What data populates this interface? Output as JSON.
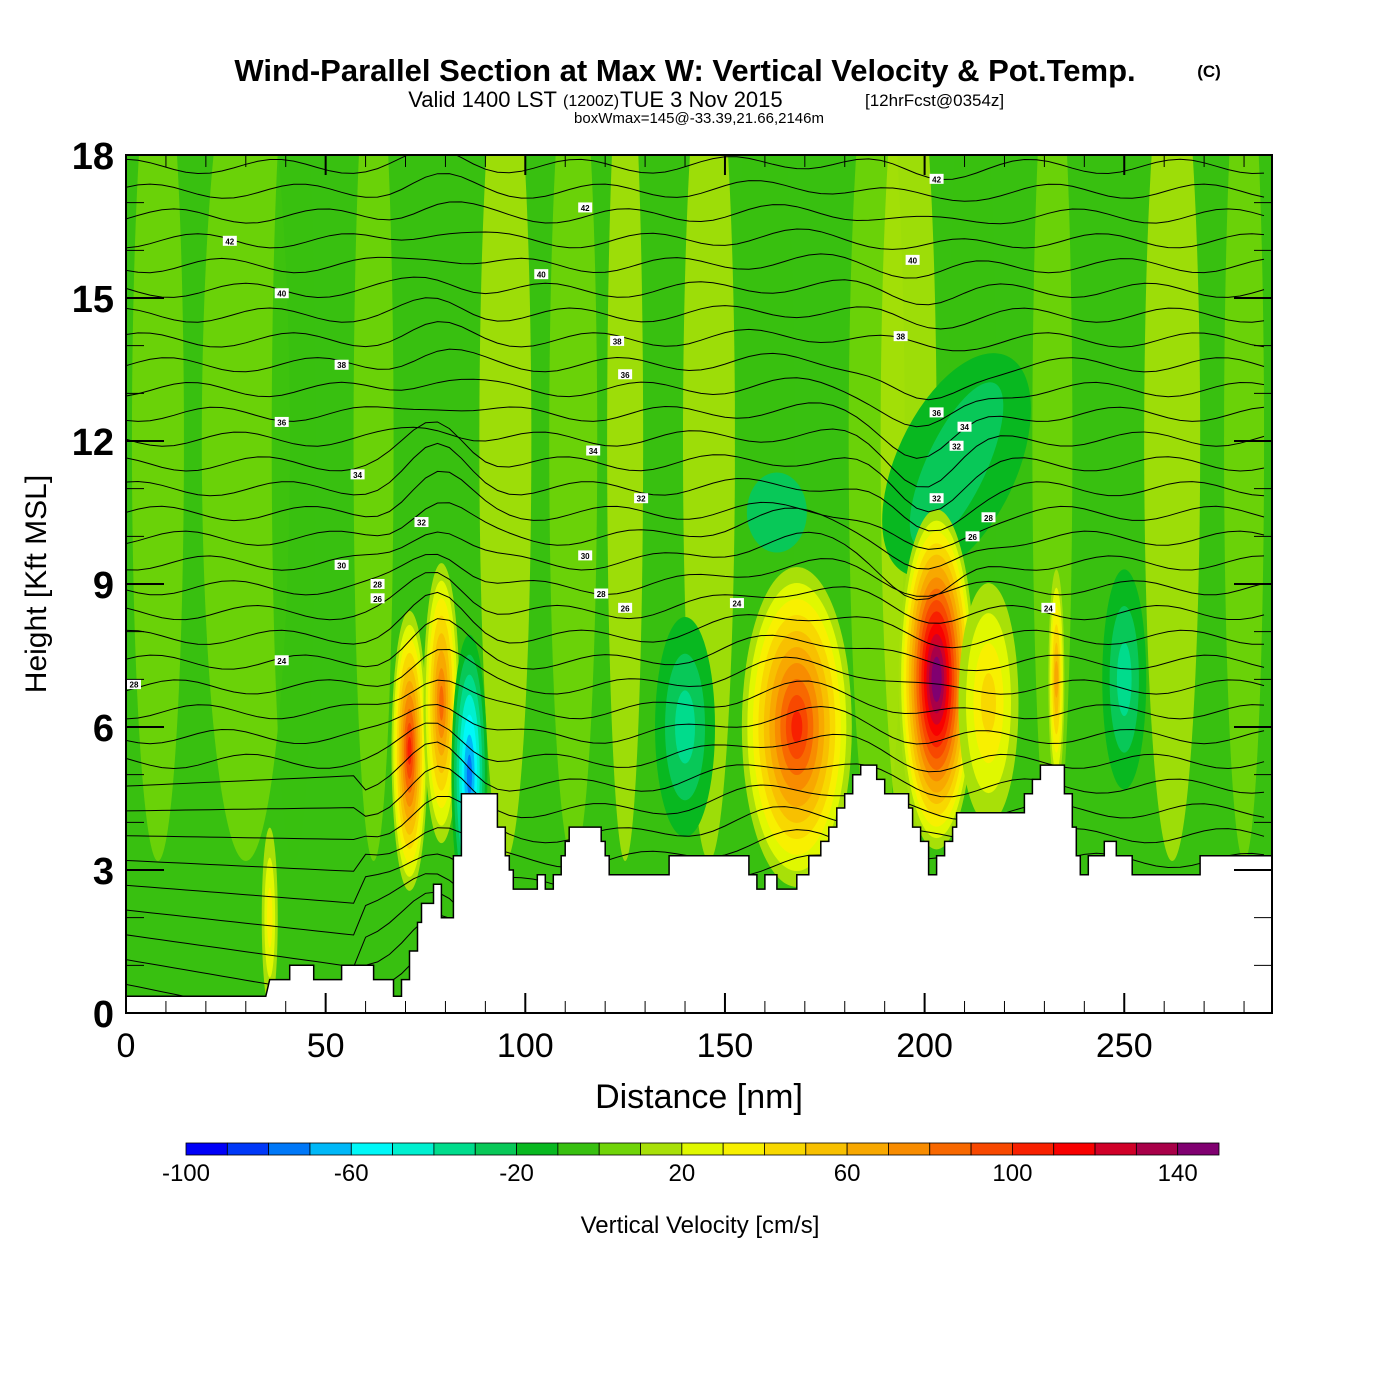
{
  "chart_data": {
    "type": "heatmap",
    "title": "Wind-Parallel Section at Max W: Vertical Velocity & Pot.Temp.",
    "copyright_mark": "(C)",
    "subtitle": {
      "valid_prefix": "Valid 1400 LST",
      "zulu": "(1200Z)",
      "date": "TUE 3 Nov 2015",
      "forecast": "[12hrFcst@0354z]"
    },
    "subsubtitle": "boxWmax=145@-33.39,21.66,2146m",
    "xlabel": "Distance [nm]",
    "ylabel": "Height [Kft MSL]",
    "xlim": [
      0,
      287
    ],
    "ylim": [
      0,
      18
    ],
    "xticks": [
      0,
      50,
      100,
      150,
      200,
      250
    ],
    "xtick_labels": [
      "0",
      "50",
      "100",
      "150",
      "200",
      "250"
    ],
    "yticks": [
      0,
      3,
      6,
      9,
      12,
      15,
      18
    ],
    "ytick_labels": [
      "0",
      "3",
      "6",
      "9",
      "12",
      "15",
      "18"
    ],
    "colorbar": {
      "label": "Vertical Velocity [cm/s]",
      "levels": [
        -100,
        -90,
        -80,
        -70,
        -60,
        -50,
        -40,
        -30,
        -20,
        -10,
        0,
        10,
        20,
        30,
        40,
        50,
        60,
        70,
        80,
        90,
        100,
        110,
        120,
        130,
        140,
        150
      ],
      "tick_values": [
        -100,
        -60,
        -20,
        20,
        60,
        100,
        140
      ],
      "tick_labels": [
        "-100",
        "-60",
        "-20",
        "20",
        "60",
        "100",
        "140"
      ],
      "colors": [
        "#0000f8",
        "#0038f8",
        "#0078f8",
        "#00b8f8",
        "#00f8f8",
        "#00f0d0",
        "#00dc8c",
        "#08c858",
        "#08b820",
        "#38c010",
        "#70d408",
        "#a8e008",
        "#e0f800",
        "#f8f000",
        "#f8d800",
        "#f8c000",
        "#f8a800",
        "#f88c00",
        "#f86800",
        "#f84800",
        "#f82000",
        "#f80000",
        "#d00028",
        "#a80048",
        "#800070"
      ]
    },
    "updraft_cores": [
      {
        "x_nm": 71,
        "z_kft": 5.5,
        "w_cms": 100
      },
      {
        "x_nm": 79,
        "z_kft": 6.5,
        "w_cms": 80
      },
      {
        "x_nm": 86,
        "z_kft": 5.0,
        "w_cms": -70
      },
      {
        "x_nm": 36,
        "z_kft": 2.0,
        "w_cms": 30
      },
      {
        "x_nm": 168,
        "z_kft": 6.0,
        "w_cms": 100
      },
      {
        "x_nm": 203,
        "z_kft": 7.0,
        "w_cms": 145
      },
      {
        "x_nm": 216,
        "z_kft": 6.5,
        "w_cms": 40
      },
      {
        "x_nm": 233,
        "z_kft": 7.0,
        "w_cms": 60
      },
      {
        "x_nm": 250,
        "z_kft": 7.0,
        "w_cms": -30
      },
      {
        "x_nm": 140,
        "z_kft": 6.0,
        "w_cms": -30
      }
    ],
    "terrain_kft": [
      [
        0,
        0.35
      ],
      [
        35,
        0.35
      ],
      [
        36,
        0.7
      ],
      [
        41,
        0.7
      ],
      [
        41,
        1.0
      ],
      [
        47,
        1.0
      ],
      [
        47,
        0.7
      ],
      [
        54,
        0.7
      ],
      [
        54,
        1.0
      ],
      [
        62,
        1.0
      ],
      [
        62,
        0.7
      ],
      [
        67,
        0.7
      ],
      [
        67,
        0.35
      ],
      [
        69,
        0.35
      ],
      [
        69,
        0.7
      ],
      [
        71,
        0.7
      ],
      [
        71,
        1.3
      ],
      [
        73,
        1.3
      ],
      [
        73,
        1.9
      ],
      [
        74,
        1.9
      ],
      [
        74,
        2.3
      ],
      [
        77,
        2.3
      ],
      [
        77,
        2.7
      ],
      [
        79,
        2.7
      ],
      [
        79,
        2.0
      ],
      [
        82,
        2.0
      ],
      [
        82,
        3.3
      ],
      [
        84,
        3.3
      ],
      [
        84,
        4.6
      ],
      [
        93,
        4.6
      ],
      [
        93,
        3.9
      ],
      [
        95,
        3.9
      ],
      [
        95,
        3.3
      ],
      [
        96,
        3.3
      ],
      [
        96,
        3.0
      ],
      [
        97,
        3.0
      ],
      [
        97,
        2.6
      ],
      [
        103,
        2.6
      ],
      [
        103,
        2.9
      ],
      [
        105,
        2.9
      ],
      [
        105,
        2.6
      ],
      [
        107,
        2.6
      ],
      [
        107,
        2.9
      ],
      [
        109,
        2.9
      ],
      [
        109,
        3.3
      ],
      [
        110,
        3.3
      ],
      [
        110,
        3.6
      ],
      [
        111,
        3.6
      ],
      [
        111,
        3.9
      ],
      [
        119,
        3.9
      ],
      [
        119,
        3.6
      ],
      [
        120,
        3.6
      ],
      [
        120,
        3.3
      ],
      [
        121,
        3.3
      ],
      [
        121,
        2.9
      ],
      [
        136,
        2.9
      ],
      [
        136,
        3.3
      ],
      [
        156,
        3.3
      ],
      [
        156,
        2.9
      ],
      [
        158,
        2.9
      ],
      [
        158,
        2.6
      ],
      [
        160,
        2.6
      ],
      [
        160,
        2.9
      ],
      [
        163,
        2.9
      ],
      [
        163,
        2.6
      ],
      [
        168,
        2.6
      ],
      [
        168,
        2.9
      ],
      [
        171,
        2.9
      ],
      [
        171,
        3.3
      ],
      [
        174,
        3.3
      ],
      [
        174,
        3.6
      ],
      [
        176,
        3.6
      ],
      [
        176,
        3.9
      ],
      [
        178,
        3.9
      ],
      [
        178,
        4.3
      ],
      [
        180,
        4.3
      ],
      [
        180,
        4.6
      ],
      [
        182,
        4.6
      ],
      [
        182,
        5.0
      ],
      [
        184,
        5.0
      ],
      [
        184,
        5.2
      ],
      [
        188,
        5.2
      ],
      [
        188,
        4.9
      ],
      [
        190,
        4.9
      ],
      [
        190,
        4.6
      ],
      [
        196,
        4.6
      ],
      [
        196,
        4.3
      ],
      [
        197,
        4.3
      ],
      [
        197,
        3.9
      ],
      [
        199,
        3.9
      ],
      [
        199,
        3.6
      ],
      [
        201,
        3.6
      ],
      [
        201,
        2.9
      ],
      [
        203,
        2.9
      ],
      [
        203,
        3.3
      ],
      [
        205,
        3.3
      ],
      [
        205,
        3.6
      ],
      [
        207,
        3.6
      ],
      [
        207,
        3.9
      ],
      [
        208,
        3.9
      ],
      [
        208,
        4.2
      ],
      [
        225,
        4.2
      ],
      [
        225,
        4.6
      ],
      [
        227,
        4.6
      ],
      [
        227,
        4.9
      ],
      [
        229,
        4.9
      ],
      [
        229,
        5.2
      ],
      [
        235,
        5.2
      ],
      [
        235,
        4.6
      ],
      [
        237,
        4.6
      ],
      [
        237,
        3.9
      ],
      [
        238,
        3.9
      ],
      [
        238,
        3.3
      ],
      [
        239,
        3.3
      ],
      [
        239,
        2.9
      ],
      [
        241,
        2.9
      ],
      [
        241,
        3.3
      ],
      [
        245,
        3.3
      ],
      [
        245,
        3.6
      ],
      [
        248,
        3.6
      ],
      [
        248,
        3.3
      ],
      [
        252,
        3.3
      ],
      [
        252,
        2.9
      ],
      [
        269,
        2.9
      ],
      [
        269,
        3.3
      ],
      [
        287,
        3.3
      ]
    ],
    "theta_contour_labels": [
      {
        "text": "42",
        "x_nm": 26,
        "z_kft": 16.2
      },
      {
        "text": "42",
        "x_nm": 115,
        "z_kft": 16.9
      },
      {
        "text": "42",
        "x_nm": 203,
        "z_kft": 17.5
      },
      {
        "text": "40",
        "x_nm": 39,
        "z_kft": 15.1
      },
      {
        "text": "40",
        "x_nm": 104,
        "z_kft": 15.5
      },
      {
        "text": "40",
        "x_nm": 197,
        "z_kft": 15.8
      },
      {
        "text": "38",
        "x_nm": 54,
        "z_kft": 13.6
      },
      {
        "text": "38",
        "x_nm": 123,
        "z_kft": 14.1
      },
      {
        "text": "38",
        "x_nm": 194,
        "z_kft": 14.2
      },
      {
        "text": "36",
        "x_nm": 39,
        "z_kft": 12.4
      },
      {
        "text": "36",
        "x_nm": 125,
        "z_kft": 13.4
      },
      {
        "text": "36",
        "x_nm": 203,
        "z_kft": 12.6
      },
      {
        "text": "34",
        "x_nm": 58,
        "z_kft": 11.3
      },
      {
        "text": "34",
        "x_nm": 117,
        "z_kft": 11.8
      },
      {
        "text": "34",
        "x_nm": 210,
        "z_kft": 12.3
      },
      {
        "text": "32",
        "x_nm": 74,
        "z_kft": 10.3
      },
      {
        "text": "32",
        "x_nm": 129,
        "z_kft": 10.8
      },
      {
        "text": "32",
        "x_nm": 208,
        "z_kft": 11.9
      },
      {
        "text": "32",
        "x_nm": 203,
        "z_kft": 10.8
      },
      {
        "text": "30",
        "x_nm": 54,
        "z_kft": 9.4
      },
      {
        "text": "30",
        "x_nm": 115,
        "z_kft": 9.6
      },
      {
        "text": "28",
        "x_nm": 63,
        "z_kft": 9.0
      },
      {
        "text": "28",
        "x_nm": 119,
        "z_kft": 8.8
      },
      {
        "text": "28",
        "x_nm": 216,
        "z_kft": 10.4
      },
      {
        "text": "26",
        "x_nm": 63,
        "z_kft": 8.7
      },
      {
        "text": "26",
        "x_nm": 125,
        "z_kft": 8.5
      },
      {
        "text": "26",
        "x_nm": 212,
        "z_kft": 10.0
      },
      {
        "text": "24",
        "x_nm": 39,
        "z_kft": 7.4
      },
      {
        "text": "24",
        "x_nm": 153,
        "z_kft": 8.6
      },
      {
        "text": "24",
        "x_nm": 231,
        "z_kft": 8.5
      },
      {
        "text": "28",
        "x_nm": 2,
        "z_kft": 6.9
      }
    ]
  }
}
